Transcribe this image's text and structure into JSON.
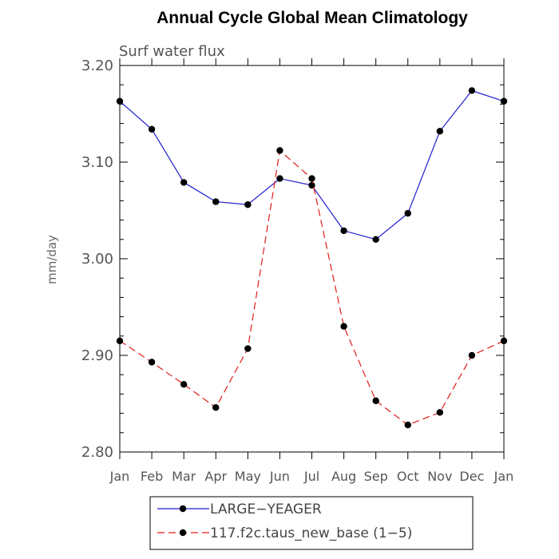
{
  "chart_data": {
    "type": "line",
    "title": "Annual Cycle Global Mean Climatology",
    "subtitle": "Surf water flux",
    "xlabel": "",
    "ylabel": "mm/day",
    "categories": [
      "Jan",
      "Feb",
      "Mar",
      "Apr",
      "May",
      "Jun",
      "Jul",
      "Aug",
      "Sep",
      "Oct",
      "Nov",
      "Dec",
      "Jan"
    ],
    "ylim": [
      2.8,
      3.2
    ],
    "yticks": [
      "2.80",
      "2.90",
      "3.00",
      "3.10",
      "3.20"
    ],
    "grid": false,
    "legend_position": "bottom",
    "series": [
      {
        "name": "LARGE−YEAGER",
        "color": "#1f1fcf",
        "dash": "solid",
        "values": [
          3.163,
          3.134,
          3.079,
          3.059,
          3.056,
          3.083,
          3.076,
          3.029,
          3.02,
          3.047,
          3.132,
          3.174,
          3.163
        ]
      },
      {
        "name": "117.f2c.taus_new_base (1−5)",
        "color": "#e01b1b",
        "dash": "dashed",
        "values": [
          2.915,
          2.893,
          2.87,
          2.846,
          2.907,
          3.112,
          3.083,
          2.93,
          2.853,
          2.828,
          2.841,
          2.9,
          2.915
        ]
      }
    ]
  }
}
